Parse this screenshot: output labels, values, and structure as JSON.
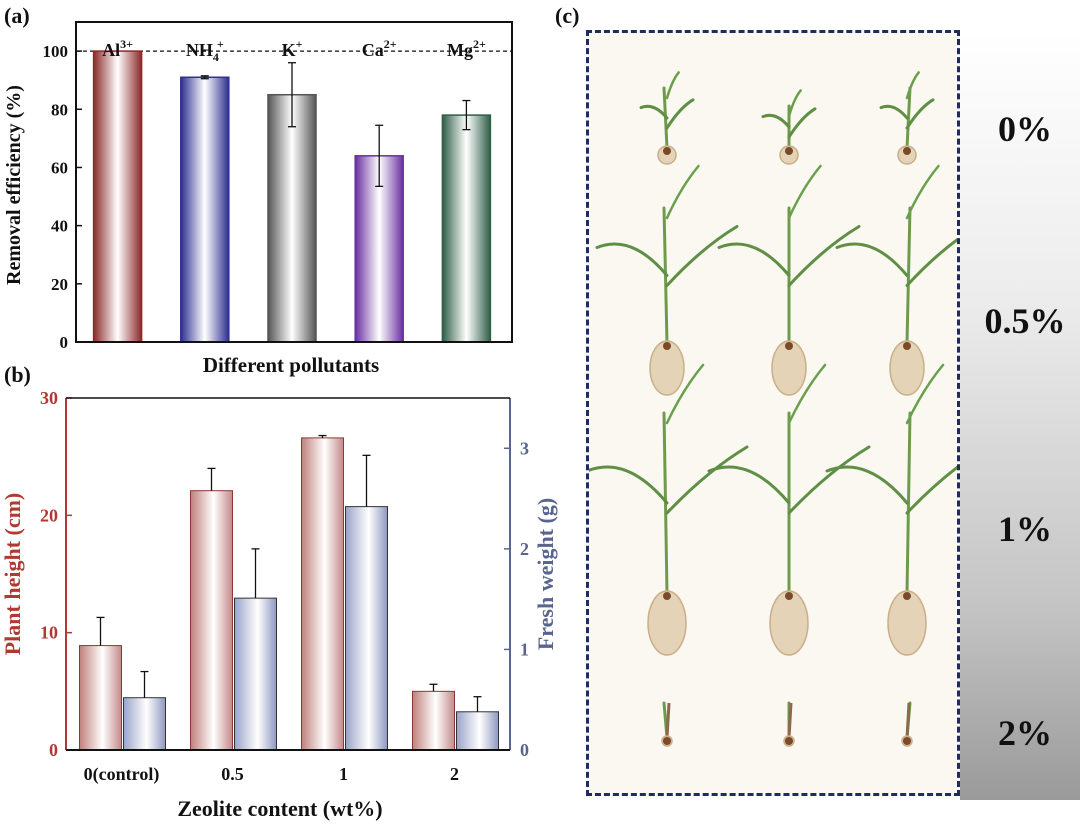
{
  "panel_labels": {
    "a": "(a)",
    "b": "(b)",
    "c": "(c)"
  },
  "colors": {
    "al": "#8b2a2a",
    "nh4": "#2e2f8f",
    "k": "#555555",
    "ca": "#6a2fa0",
    "mg": "#2f5e48",
    "height": "#b03a32",
    "weight": "#59658e"
  },
  "chart_data": [
    {
      "type": "bar",
      "panel": "a",
      "categories": [
        {
          "base": "Al",
          "sup": "3+",
          "sub": ""
        },
        {
          "base": "NH",
          "sup": "+",
          "sub": "4"
        },
        {
          "base": "K",
          "sup": "+",
          "sub": ""
        },
        {
          "base": "Ca",
          "sup": "2+",
          "sub": ""
        },
        {
          "base": "Mg",
          "sup": "2+",
          "sub": ""
        }
      ],
      "values": [
        100,
        91,
        85,
        64,
        78
      ],
      "errors": [
        0,
        0.5,
        11,
        10.5,
        5
      ],
      "xlabel": "Different pollutants",
      "ylabel": "Removal efficiency (%)",
      "ylim": [
        0,
        110
      ],
      "yticks": [
        0,
        20,
        40,
        60,
        80,
        100
      ],
      "reference_line": 100,
      "grid": false
    },
    {
      "type": "bar",
      "panel": "b",
      "categories": [
        "0(control)",
        "0.5",
        "1",
        "2"
      ],
      "xlabel": "Zeolite content (wt%)",
      "series": [
        {
          "name": "Plant height (cm)",
          "axis": "left",
          "values": [
            8.9,
            22.1,
            26.6,
            5.0
          ],
          "errors": [
            2.4,
            1.9,
            0.2,
            0.6
          ]
        },
        {
          "name": "Fresh weight (g)",
          "axis": "right",
          "values": [
            0.52,
            1.51,
            2.42,
            0.38
          ],
          "errors": [
            0.26,
            0.49,
            0.51,
            0.15
          ]
        }
      ],
      "ylim_left": [
        0,
        30
      ],
      "yticks_left": [
        0,
        10,
        20,
        30
      ],
      "ylim_right": [
        0,
        3.5
      ],
      "yticks_right": [
        0,
        1,
        2,
        3
      ],
      "grid": false
    }
  ],
  "photo_panel": {
    "concentrations": [
      "0%",
      "0.5%",
      "1%",
      "2%"
    ]
  }
}
